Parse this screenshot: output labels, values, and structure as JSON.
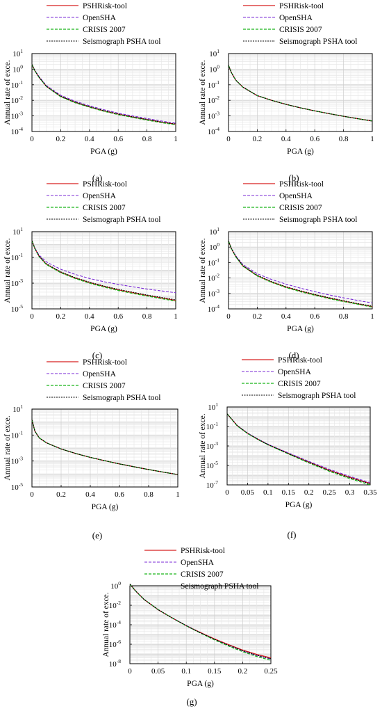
{
  "chart_data": [
    {
      "panel": "(a)",
      "type": "line",
      "xlabel": "PGA (g)",
      "ylabel": "Annual rate of exce.",
      "xlim": [
        0,
        1
      ],
      "xticks": [
        "0",
        "0.2",
        "0.4",
        "0.6",
        "0.8",
        "1"
      ],
      "ylim_exp": [
        -4,
        1
      ],
      "yticks_exp": [
        1,
        0,
        -1,
        -2,
        -3,
        -4
      ],
      "yscale": "log",
      "grid": true,
      "legend": "top",
      "series": [
        {
          "name": "PSHRisk-tool",
          "x": [
            0,
            0.02,
            0.05,
            0.1,
            0.2,
            0.3,
            0.4,
            0.5,
            0.6,
            0.7,
            0.8,
            0.9,
            1.0
          ],
          "y": [
            2.0,
            0.8,
            0.3,
            0.08,
            0.018,
            0.0075,
            0.0038,
            0.0021,
            0.0013,
            0.00085,
            0.00058,
            0.0004,
            0.00029
          ]
        },
        {
          "name": "OpenSHA",
          "x": [
            0,
            0.02,
            0.05,
            0.1,
            0.2,
            0.3,
            0.4,
            0.5,
            0.6,
            0.7,
            0.8,
            0.9,
            1.0
          ],
          "y": [
            2.0,
            0.85,
            0.33,
            0.09,
            0.021,
            0.0088,
            0.0045,
            0.0025,
            0.0015,
            0.001,
            0.00068,
            0.00047,
            0.00034
          ]
        },
        {
          "name": "CRISIS 2007",
          "x": [
            0,
            0.02,
            0.05,
            0.1,
            0.2,
            0.3,
            0.4,
            0.5,
            0.6,
            0.7,
            0.8,
            0.9,
            1.0
          ],
          "y": [
            2.0,
            0.8,
            0.29,
            0.078,
            0.017,
            0.007,
            0.0036,
            0.002,
            0.0012,
            0.0008,
            0.00054,
            0.00037,
            0.00027
          ]
        },
        {
          "name": "Seismograph PSHA tool",
          "x": [
            0,
            0.02,
            0.05,
            0.1,
            0.2,
            0.3,
            0.4,
            0.5,
            0.6,
            0.7,
            0.8,
            0.9,
            1.0
          ],
          "y": [
            2.0,
            0.8,
            0.3,
            0.08,
            0.0185,
            0.0077,
            0.0039,
            0.0022,
            0.00132,
            0.00087,
            0.00059,
            0.00041,
            0.0003
          ]
        }
      ]
    },
    {
      "panel": "(b)",
      "type": "line",
      "xlabel": "PGA (g)",
      "ylabel": "Annual rate of exce.",
      "xlim": [
        0,
        1
      ],
      "xticks": [
        "0",
        "0.2",
        "0.4",
        "0.6",
        "0.8",
        "1"
      ],
      "ylim_exp": [
        -4,
        1
      ],
      "yticks_exp": [
        1,
        0,
        -1,
        -2,
        -3,
        -4
      ],
      "yscale": "log",
      "grid": true,
      "legend": "top",
      "series": [
        {
          "name": "PSHRisk-tool",
          "x": [
            0,
            0.02,
            0.05,
            0.1,
            0.2,
            0.3,
            0.4,
            0.5,
            0.6,
            0.7,
            0.8,
            0.9,
            1.0
          ],
          "y": [
            1.8,
            0.6,
            0.2,
            0.07,
            0.02,
            0.01,
            0.0055,
            0.0033,
            0.0021,
            0.0014,
            0.00095,
            0.00066,
            0.00047
          ]
        },
        {
          "name": "OpenSHA",
          "x": [
            0,
            0.02,
            0.05,
            0.1,
            0.2,
            0.3,
            0.4,
            0.5,
            0.6,
            0.7,
            0.8,
            0.9,
            1.0
          ],
          "y": [
            1.8,
            0.6,
            0.2,
            0.07,
            0.02,
            0.01,
            0.0055,
            0.0033,
            0.0021,
            0.0014,
            0.00095,
            0.00066,
            0.00047
          ]
        },
        {
          "name": "CRISIS 2007",
          "x": [
            0,
            0.02,
            0.05,
            0.1,
            0.2,
            0.3,
            0.4,
            0.5,
            0.6,
            0.7,
            0.8,
            0.9,
            1.0
          ],
          "y": [
            1.8,
            0.6,
            0.2,
            0.07,
            0.02,
            0.01,
            0.0055,
            0.0033,
            0.0021,
            0.0014,
            0.00095,
            0.00066,
            0.00047
          ]
        },
        {
          "name": "Seismograph PSHA tool",
          "x": [
            0,
            0.02,
            0.05,
            0.1,
            0.2,
            0.3,
            0.4,
            0.5,
            0.6,
            0.7,
            0.8,
            0.9,
            1.0
          ],
          "y": [
            1.8,
            0.6,
            0.2,
            0.07,
            0.02,
            0.01,
            0.0055,
            0.0033,
            0.0021,
            0.0014,
            0.00095,
            0.00066,
            0.00047
          ]
        }
      ]
    },
    {
      "panel": "(c)",
      "type": "line",
      "xlabel": "PGA (g)",
      "ylabel": "Annual rate of exce.",
      "xlim": [
        0,
        1
      ],
      "xticks": [
        "0",
        "0.2",
        "0.4",
        "0.6",
        "0.8",
        "1"
      ],
      "ylim_exp": [
        -5,
        1
      ],
      "yticks_exp": [
        1,
        -1,
        -3,
        -5
      ],
      "yscale": "log",
      "grid": true,
      "legend": "top",
      "series": [
        {
          "name": "PSHRisk-tool",
          "x": [
            0,
            0.02,
            0.05,
            0.1,
            0.2,
            0.3,
            0.4,
            0.5,
            0.6,
            0.7,
            0.8,
            0.9,
            1.0
          ],
          "y": [
            2.0,
            0.5,
            0.12,
            0.03,
            0.007,
            0.0025,
            0.0011,
            0.00055,
            0.0003,
            0.00018,
            0.00011,
            7e-05,
            4.5e-05
          ]
        },
        {
          "name": "OpenSHA",
          "x": [
            0,
            0.02,
            0.05,
            0.1,
            0.2,
            0.3,
            0.4,
            0.5,
            0.6,
            0.7,
            0.8,
            0.9,
            1.0
          ],
          "y": [
            2.0,
            0.55,
            0.15,
            0.045,
            0.012,
            0.0048,
            0.0023,
            0.0013,
            0.0008,
            0.00052,
            0.00035,
            0.00025,
            0.00018
          ]
        },
        {
          "name": "CRISIS 2007",
          "x": [
            0,
            0.02,
            0.05,
            0.1,
            0.2,
            0.3,
            0.4,
            0.5,
            0.6,
            0.7,
            0.8,
            0.9,
            1.0
          ],
          "y": [
            2.0,
            0.5,
            0.115,
            0.028,
            0.0065,
            0.0023,
            0.001,
            0.0005,
            0.00027,
            0.00016,
            0.0001,
            6.3e-05,
            4e-05
          ]
        },
        {
          "name": "Seismograph PSHA tool",
          "x": [
            0,
            0.02,
            0.05,
            0.1,
            0.2,
            0.3,
            0.4,
            0.5,
            0.6,
            0.7,
            0.8,
            0.9,
            1.0
          ],
          "y": [
            2.0,
            0.5,
            0.125,
            0.032,
            0.0075,
            0.0027,
            0.0012,
            0.0006,
            0.00033,
            0.0002,
            0.00012,
            7.8e-05,
            5e-05
          ]
        }
      ]
    },
    {
      "panel": "(d)",
      "type": "line",
      "xlabel": "PGA (g)",
      "ylabel": "Annual rate of exce.",
      "xlim": [
        0,
        1
      ],
      "xticks": [
        "0",
        "0.2",
        "0.4",
        "0.6",
        "0.8",
        "1"
      ],
      "ylim_exp": [
        -4,
        1
      ],
      "yticks_exp": [
        1,
        0,
        -1,
        -2,
        -3,
        -4
      ],
      "yscale": "log",
      "grid": true,
      "legend": "top",
      "series": [
        {
          "name": "PSHRisk-tool",
          "x": [
            0,
            0.02,
            0.05,
            0.1,
            0.2,
            0.3,
            0.4,
            0.5,
            0.6,
            0.7,
            0.8,
            0.9,
            1.0
          ],
          "y": [
            2.5,
            0.8,
            0.25,
            0.06,
            0.014,
            0.0055,
            0.0026,
            0.0014,
            0.00082,
            0.0005,
            0.00032,
            0.00021,
            0.00014
          ]
        },
        {
          "name": "OpenSHA",
          "x": [
            0,
            0.02,
            0.05,
            0.1,
            0.2,
            0.3,
            0.4,
            0.5,
            0.6,
            0.7,
            0.8,
            0.9,
            1.0
          ],
          "y": [
            2.5,
            0.85,
            0.28,
            0.075,
            0.019,
            0.008,
            0.004,
            0.0022,
            0.0013,
            0.0008,
            0.00052,
            0.00035,
            0.00024
          ]
        },
        {
          "name": "CRISIS 2007",
          "x": [
            0,
            0.02,
            0.05,
            0.1,
            0.2,
            0.3,
            0.4,
            0.5,
            0.6,
            0.7,
            0.8,
            0.9,
            1.0
          ],
          "y": [
            2.5,
            0.8,
            0.24,
            0.058,
            0.0135,
            0.0052,
            0.0024,
            0.0013,
            0.00076,
            0.00046,
            0.0003,
            0.0002,
            0.00013
          ]
        },
        {
          "name": "Seismograph PSHA tool",
          "x": [
            0,
            0.02,
            0.05,
            0.1,
            0.2,
            0.3,
            0.4,
            0.5,
            0.6,
            0.7,
            0.8,
            0.9,
            1.0
          ],
          "y": [
            2.5,
            0.8,
            0.26,
            0.064,
            0.015,
            0.0058,
            0.0027,
            0.0015,
            0.00086,
            0.00053,
            0.00034,
            0.00022,
            0.00015
          ]
        }
      ]
    },
    {
      "panel": "(e)",
      "type": "line",
      "xlabel": "PGA (g)",
      "ylabel": "Annual rate of exce.",
      "xlim": [
        0,
        1
      ],
      "xticks": [
        "0",
        "0.2",
        "0.4",
        "0.6",
        "0.8",
        "1"
      ],
      "ylim_exp": [
        -5,
        1
      ],
      "yticks_exp": [
        1,
        -1,
        -3,
        -5
      ],
      "yscale": "log",
      "grid": true,
      "legend": "top",
      "series": [
        {
          "name": "PSHRisk-tool",
          "x": [
            0,
            0.02,
            0.05,
            0.1,
            0.2,
            0.3,
            0.4,
            0.5,
            0.6,
            0.7,
            0.8,
            0.9,
            1.0
          ],
          "y": [
            1.5,
            0.2,
            0.06,
            0.025,
            0.0085,
            0.0038,
            0.0019,
            0.00105,
            0.0006,
            0.00036,
            0.00022,
            0.00014,
            9e-05
          ]
        },
        {
          "name": "OpenSHA",
          "x": [
            0,
            0.02,
            0.05,
            0.1,
            0.2,
            0.3,
            0.4,
            0.5,
            0.6,
            0.7,
            0.8,
            0.9,
            1.0
          ],
          "y": [
            1.5,
            0.2,
            0.06,
            0.025,
            0.0085,
            0.0038,
            0.0019,
            0.00105,
            0.0006,
            0.00036,
            0.00022,
            0.00014,
            9e-05
          ]
        },
        {
          "name": "CRISIS 2007",
          "x": [
            0,
            0.02,
            0.05,
            0.1,
            0.2,
            0.3,
            0.4,
            0.5,
            0.6,
            0.7,
            0.8,
            0.9,
            1.0
          ],
          "y": [
            1.5,
            0.2,
            0.06,
            0.025,
            0.0085,
            0.0038,
            0.0019,
            0.00105,
            0.0006,
            0.00036,
            0.00022,
            0.00014,
            9e-05
          ]
        },
        {
          "name": "Seismograph PSHA tool",
          "x": [
            0,
            0.02,
            0.05,
            0.1,
            0.2,
            0.3,
            0.4,
            0.5,
            0.6,
            0.7,
            0.8,
            0.9,
            1.0
          ],
          "y": [
            1.5,
            0.2,
            0.06,
            0.025,
            0.0085,
            0.0038,
            0.0019,
            0.00105,
            0.0006,
            0.00036,
            0.00022,
            0.00014,
            9e-05
          ]
        }
      ]
    },
    {
      "panel": "(f)",
      "type": "line",
      "xlabel": "PGA (g)",
      "ylabel": "Annual rate of exce.",
      "xlim": [
        0,
        0.35
      ],
      "xticks": [
        "0",
        "0.05",
        "0.1",
        "0.15",
        "0.2",
        "0.25",
        "0.3",
        "0.35"
      ],
      "ylim_exp": [
        -7,
        1
      ],
      "yticks_exp": [
        1,
        -1,
        -3,
        -5,
        -7
      ],
      "yscale": "log",
      "grid": true,
      "legend": "top",
      "series": [
        {
          "name": "PSHRisk-tool",
          "x": [
            0,
            0.025,
            0.05,
            0.075,
            0.1,
            0.15,
            0.2,
            0.25,
            0.3,
            0.35
          ],
          "y": [
            2.0,
            0.12,
            0.02,
            0.005,
            0.0014,
            0.00017,
            2.2e-05,
            3.2e-06,
            6e-07,
            1.4e-07
          ]
        },
        {
          "name": "OpenSHA",
          "x": [
            0,
            0.025,
            0.05,
            0.075,
            0.1,
            0.15,
            0.2,
            0.25,
            0.3,
            0.35
          ],
          "y": [
            2.0,
            0.12,
            0.021,
            0.0052,
            0.0015,
            0.00019,
            2.6e-05,
            4e-06,
            7.5e-07,
            1.7e-07
          ]
        },
        {
          "name": "CRISIS 2007",
          "x": [
            0,
            0.025,
            0.05,
            0.075,
            0.1,
            0.15,
            0.2,
            0.25,
            0.3,
            0.35
          ],
          "y": [
            2.0,
            0.11,
            0.019,
            0.0046,
            0.0013,
            0.00015,
            1.8e-05,
            2.5e-06,
            4.5e-07,
            1e-07
          ]
        },
        {
          "name": "Seismograph PSHA tool",
          "x": [
            0,
            0.025,
            0.05,
            0.075,
            0.1,
            0.15,
            0.2,
            0.25,
            0.3,
            0.35
          ],
          "y": [
            2.0,
            0.12,
            0.02,
            0.0049,
            0.00138,
            0.000165,
            2.1e-05,
            3e-06,
            5.6e-07,
            1.3e-07
          ]
        }
      ]
    },
    {
      "panel": "(g)",
      "type": "line",
      "xlabel": "PGA (g)",
      "ylabel": "Annual rate of exce.",
      "xlim": [
        0,
        0.25
      ],
      "xticks": [
        "0",
        "0.05",
        "0.1",
        "0.15",
        "0.2",
        "0.25"
      ],
      "ylim_exp": [
        -8,
        0
      ],
      "yticks_exp": [
        0,
        -2,
        -4,
        -6,
        -8
      ],
      "yscale": "log",
      "grid": true,
      "legend": "top",
      "series": [
        {
          "name": "PSHRisk-tool",
          "x": [
            0,
            0.01,
            0.025,
            0.05,
            0.075,
            0.1,
            0.125,
            0.15,
            0.175,
            0.2,
            0.225,
            0.25
          ],
          "y": [
            1.5,
            0.3,
            0.04,
            0.0035,
            0.0005,
            8e-05,
            1.6e-05,
            3.5e-06,
            9e-07,
            2.5e-07,
            9e-08,
            4e-08
          ]
        },
        {
          "name": "OpenSHA",
          "x": [
            0,
            0.01,
            0.025,
            0.05,
            0.075,
            0.1,
            0.125,
            0.15,
            0.175,
            0.2,
            0.225,
            0.25
          ],
          "y": [
            1.5,
            0.3,
            0.042,
            0.0037,
            0.00052,
            8.4e-05,
            1.5e-05,
            3.1e-06,
            7.5e-07,
            2e-07,
            7e-08,
            3e-08
          ]
        },
        {
          "name": "CRISIS 2007",
          "x": [
            0,
            0.01,
            0.025,
            0.05,
            0.075,
            0.1,
            0.125,
            0.15,
            0.175,
            0.2,
            0.225,
            0.25
          ],
          "y": [
            1.5,
            0.3,
            0.041,
            0.0036,
            0.0005,
            7.8e-05,
            1.4e-05,
            2.8e-06,
            6.5e-07,
            1.7e-07,
            5.5e-08,
            2.2e-08
          ]
        },
        {
          "name": "Seismograph PSHA tool",
          "x": [
            0,
            0.01,
            0.025,
            0.05,
            0.075,
            0.1,
            0.125,
            0.15,
            0.175,
            0.2,
            0.225,
            0.25
          ],
          "y": [
            1.5,
            0.3,
            0.04,
            0.0035,
            0.00049,
            7.8e-05,
            1.5e-05,
            3.2e-06,
            8e-07,
            2.2e-07,
            7.5e-08,
            3.2e-08
          ]
        }
      ]
    }
  ],
  "series_style": [
    {
      "color": "#d62020",
      "dash": "",
      "width": 1.3
    },
    {
      "color": "#7a2ad6",
      "dash": "4,2",
      "width": 1.1
    },
    {
      "color": "#19b319",
      "dash": "4,2",
      "width": 1.3
    },
    {
      "color": "#000000",
      "dash": "2,1.5",
      "width": 1.1
    }
  ]
}
